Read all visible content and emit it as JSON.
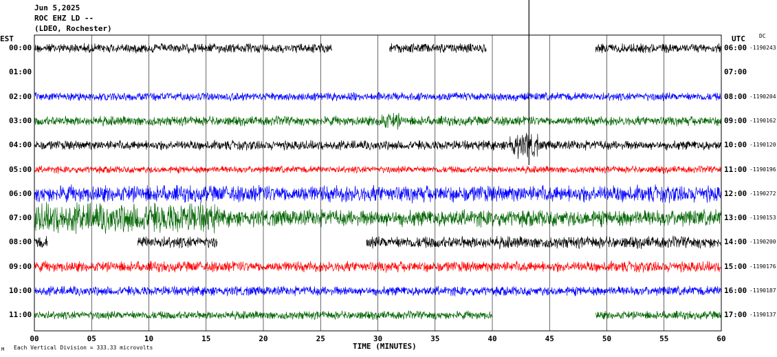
{
  "header": {
    "date": "Jun 5,2025",
    "station": "ROC EHZ LD --",
    "network": "(LDEO, Rochester)"
  },
  "left_tz": "EST",
  "right_tz": "UTC",
  "dc_label": "DC",
  "footer": {
    "scale_note": "Each Vertical Division =  333.33 microvolts",
    "corner_mark": "M"
  },
  "colors": {
    "black": "#000000",
    "blue": "#0000ff",
    "green": "#006400",
    "red": "#ff0000",
    "grid": "#000000"
  },
  "chart_data": {
    "type": "line",
    "title": "",
    "xlabel": "TIME (MINUTES)",
    "xlim": [
      0,
      60
    ],
    "x_ticks": [
      "00",
      "05",
      "10",
      "15",
      "20",
      "25",
      "30",
      "35",
      "40",
      "45",
      "50",
      "55",
      "60"
    ],
    "rows": [
      {
        "est": "00:00",
        "utc": "06:00",
        "dc": "-1190243",
        "color": "black",
        "amp": 8,
        "gaps": [
          [
            26,
            31
          ],
          [
            39.5,
            49
          ]
        ]
      },
      {
        "est": "01:00",
        "utc": "07:00",
        "dc": "",
        "color": "none",
        "amp": 0,
        "gaps": [
          [
            0,
            60
          ]
        ]
      },
      {
        "est": "02:00",
        "utc": "08:00",
        "dc": "-1190204",
        "color": "blue",
        "amp": 7,
        "gaps": []
      },
      {
        "est": "03:00",
        "utc": "09:00",
        "dc": "-1190162",
        "color": "green",
        "amp": 8,
        "gaps": []
      },
      {
        "est": "04:00",
        "utc": "10:00",
        "dc": "-1190120",
        "color": "black",
        "amp": 8,
        "gaps": []
      },
      {
        "est": "05:00",
        "utc": "11:00",
        "dc": "-1190196",
        "color": "red",
        "amp": 6,
        "gaps": []
      },
      {
        "est": "06:00",
        "utc": "12:00",
        "dc": "-1190272",
        "color": "blue",
        "amp": 14,
        "gaps": []
      },
      {
        "est": "07:00",
        "utc": "13:00",
        "dc": "-1190153",
        "color": "green",
        "amp": 14,
        "gaps": []
      },
      {
        "est": "08:00",
        "utc": "14:00",
        "dc": "-1190200",
        "color": "black",
        "amp": 10,
        "gaps": [
          [
            1.2,
            9
          ],
          [
            16,
            29
          ]
        ]
      },
      {
        "est": "09:00",
        "utc": "15:00",
        "dc": "-1190176",
        "color": "red",
        "amp": 9,
        "gaps": []
      },
      {
        "est": "10:00",
        "utc": "16:00",
        "dc": "-1190187",
        "color": "blue",
        "amp": 8,
        "gaps": []
      },
      {
        "est": "11:00",
        "utc": "17:00",
        "dc": "-1190137",
        "color": "green",
        "amp": 7,
        "gaps": [
          [
            40,
            49
          ]
        ]
      }
    ],
    "grid": true
  }
}
